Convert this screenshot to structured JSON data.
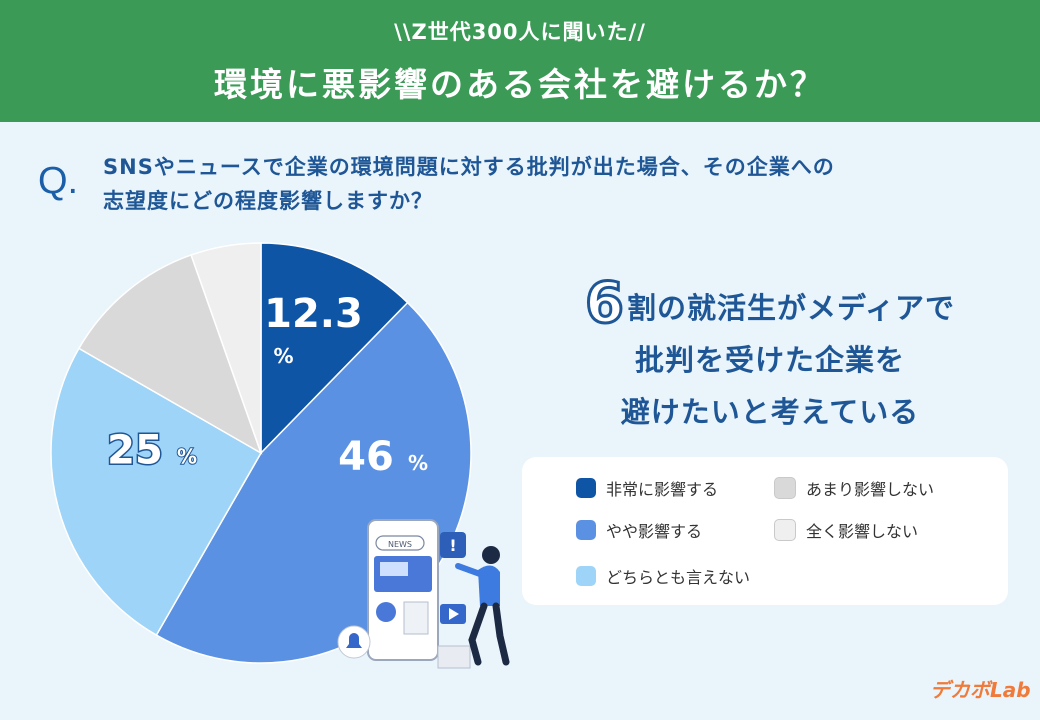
{
  "header": {
    "subtitle": "\\\\Z世代300人に聞いた//",
    "title": "環境に悪影響のある会社を避けるか？"
  },
  "question": {
    "mark": "Q.",
    "line1": "SNSやニュースで企業の環境問題に対する批判が出た場合、その企業への",
    "line2": "志望度にどの程度影響しますか？"
  },
  "headline": {
    "number": "6",
    "line1": "割の就活生がメディアで",
    "line2": "批判を受けた企業を",
    "line3": "避けたいと考えている"
  },
  "illustration": {
    "news_label": "NEWS",
    "alert_mark": "!"
  },
  "logo": "デカボLab",
  "chart_data": {
    "type": "pie",
    "unit": "%",
    "series": [
      {
        "name": "非常に影響する",
        "value": 12.3,
        "label": "12.3",
        "color": "#0f55a6"
      },
      {
        "name": "やや影響する",
        "value": 46,
        "label": "46",
        "color": "#5b91e2"
      },
      {
        "name": "どちらとも言えない",
        "value": 25,
        "label": "25",
        "color": "#9ed4f7"
      },
      {
        "name": "あまり影響しない",
        "value": 11.3,
        "label": "",
        "color": "#d9d9d9"
      },
      {
        "name": "全く影響しない",
        "value": 5.4,
        "label": "",
        "color": "#efefef"
      }
    ],
    "legend_position": "right"
  }
}
